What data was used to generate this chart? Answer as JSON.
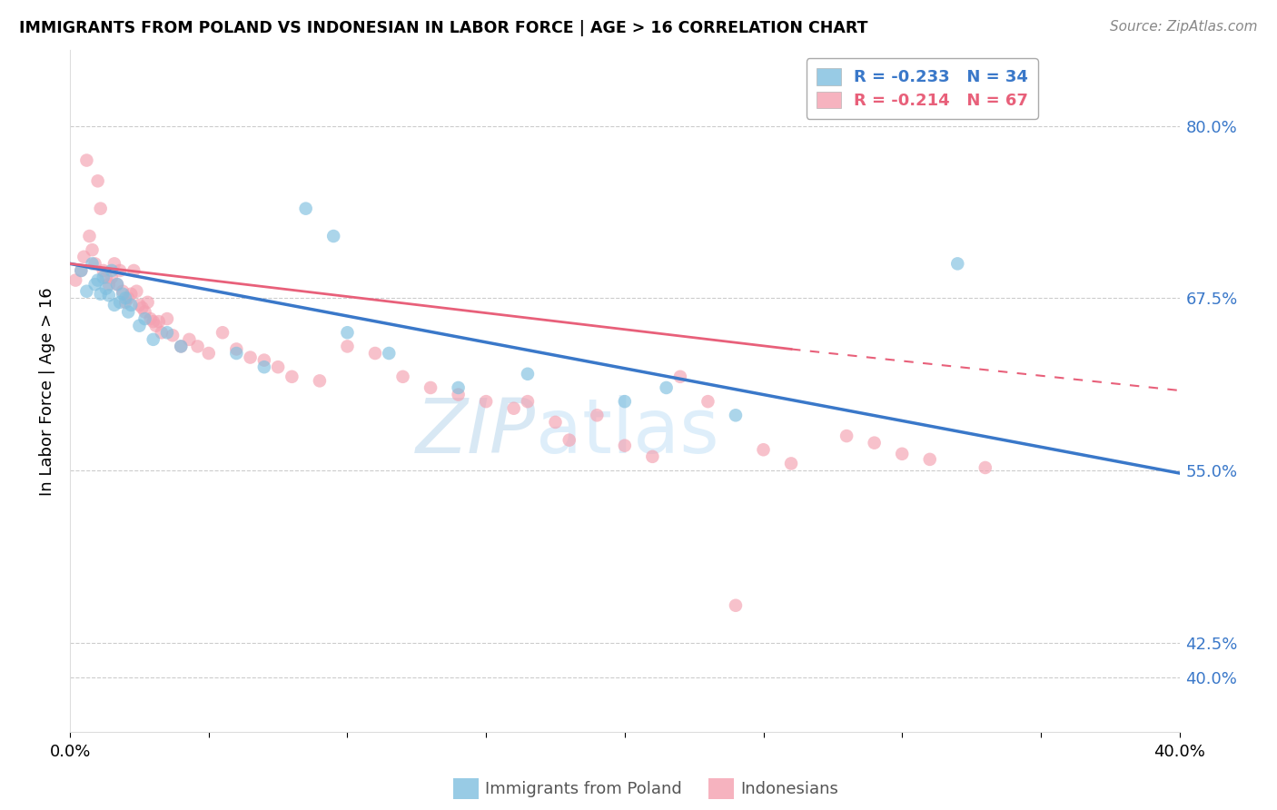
{
  "title": "IMMIGRANTS FROM POLAND VS INDONESIAN IN LABOR FORCE | AGE > 16 CORRELATION CHART",
  "source": "Source: ZipAtlas.com",
  "ylabel": "In Labor Force | Age > 16",
  "xlim": [
    0.0,
    0.4
  ],
  "ylim": [
    0.36,
    0.855
  ],
  "ytick_vals": [
    0.4,
    0.425,
    0.55,
    0.675,
    0.8
  ],
  "ytick_labels": [
    "40.0%",
    "42.5%",
    "55.0%",
    "67.5%",
    "80.0%"
  ],
  "poland_color": "#7fbfdf",
  "indonesian_color": "#f4a0b0",
  "poland_line_color": "#3a78c9",
  "indonesian_line_color": "#e8607a",
  "background_color": "#ffffff",
  "grid_color": "#cccccc",
  "watermark": "ZIPatlas",
  "poland_label": "R = -0.233   N = 34",
  "indonesian_label": "R = -0.214   N = 67",
  "poland_x": [
    0.004,
    0.006,
    0.008,
    0.009,
    0.01,
    0.011,
    0.012,
    0.013,
    0.014,
    0.015,
    0.016,
    0.017,
    0.018,
    0.019,
    0.02,
    0.021,
    0.022,
    0.025,
    0.027,
    0.03,
    0.035,
    0.04,
    0.06,
    0.07,
    0.085,
    0.095,
    0.1,
    0.115,
    0.14,
    0.165,
    0.2,
    0.215,
    0.24,
    0.32
  ],
  "poland_y": [
    0.695,
    0.68,
    0.7,
    0.685,
    0.688,
    0.678,
    0.69,
    0.682,
    0.677,
    0.695,
    0.67,
    0.685,
    0.672,
    0.678,
    0.675,
    0.665,
    0.67,
    0.655,
    0.66,
    0.645,
    0.65,
    0.64,
    0.635,
    0.625,
    0.74,
    0.72,
    0.65,
    0.635,
    0.61,
    0.62,
    0.6,
    0.61,
    0.59,
    0.7
  ],
  "indonesian_x": [
    0.002,
    0.004,
    0.005,
    0.006,
    0.007,
    0.008,
    0.009,
    0.01,
    0.011,
    0.012,
    0.013,
    0.014,
    0.015,
    0.016,
    0.017,
    0.018,
    0.019,
    0.02,
    0.021,
    0.022,
    0.023,
    0.024,
    0.025,
    0.026,
    0.027,
    0.028,
    0.029,
    0.03,
    0.031,
    0.032,
    0.033,
    0.035,
    0.037,
    0.04,
    0.043,
    0.046,
    0.05,
    0.055,
    0.06,
    0.065,
    0.07,
    0.075,
    0.08,
    0.09,
    0.1,
    0.11,
    0.12,
    0.13,
    0.14,
    0.15,
    0.16,
    0.165,
    0.175,
    0.18,
    0.19,
    0.2,
    0.21,
    0.22,
    0.23,
    0.24,
    0.25,
    0.26,
    0.28,
    0.29,
    0.3,
    0.31,
    0.33
  ],
  "indonesian_y": [
    0.688,
    0.695,
    0.705,
    0.775,
    0.72,
    0.71,
    0.7,
    0.76,
    0.74,
    0.695,
    0.69,
    0.685,
    0.69,
    0.7,
    0.685,
    0.695,
    0.68,
    0.672,
    0.675,
    0.678,
    0.695,
    0.68,
    0.67,
    0.668,
    0.665,
    0.672,
    0.66,
    0.658,
    0.655,
    0.658,
    0.65,
    0.66,
    0.648,
    0.64,
    0.645,
    0.64,
    0.635,
    0.65,
    0.638,
    0.632,
    0.63,
    0.625,
    0.618,
    0.615,
    0.64,
    0.635,
    0.618,
    0.61,
    0.605,
    0.6,
    0.595,
    0.6,
    0.585,
    0.572,
    0.59,
    0.568,
    0.56,
    0.618,
    0.6,
    0.452,
    0.565,
    0.555,
    0.575,
    0.57,
    0.562,
    0.558,
    0.552
  ]
}
